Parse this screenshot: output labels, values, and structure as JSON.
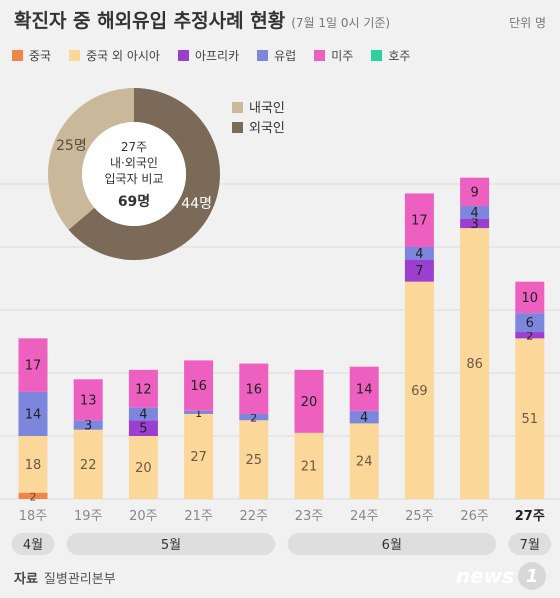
{
  "header": {
    "title": "확진자 중 해외유입 추정사례 현황",
    "subtitle": "(7월 1일 0시 기준)",
    "unit": "단위 명"
  },
  "colors": {
    "중국": "#f0854a",
    "중국 외 아시아": "#fbd79a",
    "아프리카": "#9a3fd0",
    "유럽": "#7d86dd",
    "미주": "#ee60c0",
    "호주": "#2ecf9e"
  },
  "chart_data": [
    {
      "type": "bar",
      "stacked": true,
      "categories": [
        "18주",
        "19주",
        "20주",
        "21주",
        "22주",
        "23주",
        "24주",
        "25주",
        "26주",
        "27주"
      ],
      "series": [
        {
          "name": "중국",
          "values": [
            2,
            0,
            0,
            0,
            0,
            0,
            0,
            0,
            0,
            0
          ]
        },
        {
          "name": "중국 외 아시아",
          "values": [
            18,
            22,
            20,
            27,
            25,
            21,
            24,
            69,
            86,
            51
          ]
        },
        {
          "name": "아프리카",
          "values": [
            0,
            0,
            5,
            0,
            0,
            0,
            0,
            7,
            3,
            2
          ]
        },
        {
          "name": "유럽",
          "values": [
            14,
            3,
            4,
            1,
            2,
            0,
            4,
            4,
            4,
            6
          ]
        },
        {
          "name": "미주",
          "values": [
            17,
            13,
            12,
            16,
            16,
            20,
            14,
            17,
            9,
            10
          ]
        },
        {
          "name": "호주",
          "values": [
            0,
            0,
            0,
            0,
            0,
            0,
            0,
            0,
            0,
            0
          ]
        }
      ],
      "month_groups": [
        {
          "label": "4월",
          "from": 0,
          "to": 0
        },
        {
          "label": "5월",
          "from": 1,
          "to": 4
        },
        {
          "label": "6월",
          "from": 5,
          "to": 8
        },
        {
          "label": "7월",
          "from": 9,
          "to": 9
        }
      ],
      "highlight_category": "27주",
      "ylim": [
        0,
        110
      ],
      "grid": true,
      "legend": "top-left"
    },
    {
      "type": "pie",
      "style": "donut",
      "center_text": [
        "27주",
        "내·외국인",
        "입국자 비교",
        "69명"
      ],
      "slices": [
        {
          "label": "내국인",
          "value": 25,
          "text": "25명",
          "color": "#c9b899"
        },
        {
          "label": "외국인",
          "value": 44,
          "text": "44명",
          "color": "#7b6a57"
        }
      ],
      "legend": "right"
    }
  ],
  "footer": {
    "source_label": "자료",
    "source_text": "질병관리본부",
    "logo_text": "news",
    "logo_mark": "1"
  }
}
